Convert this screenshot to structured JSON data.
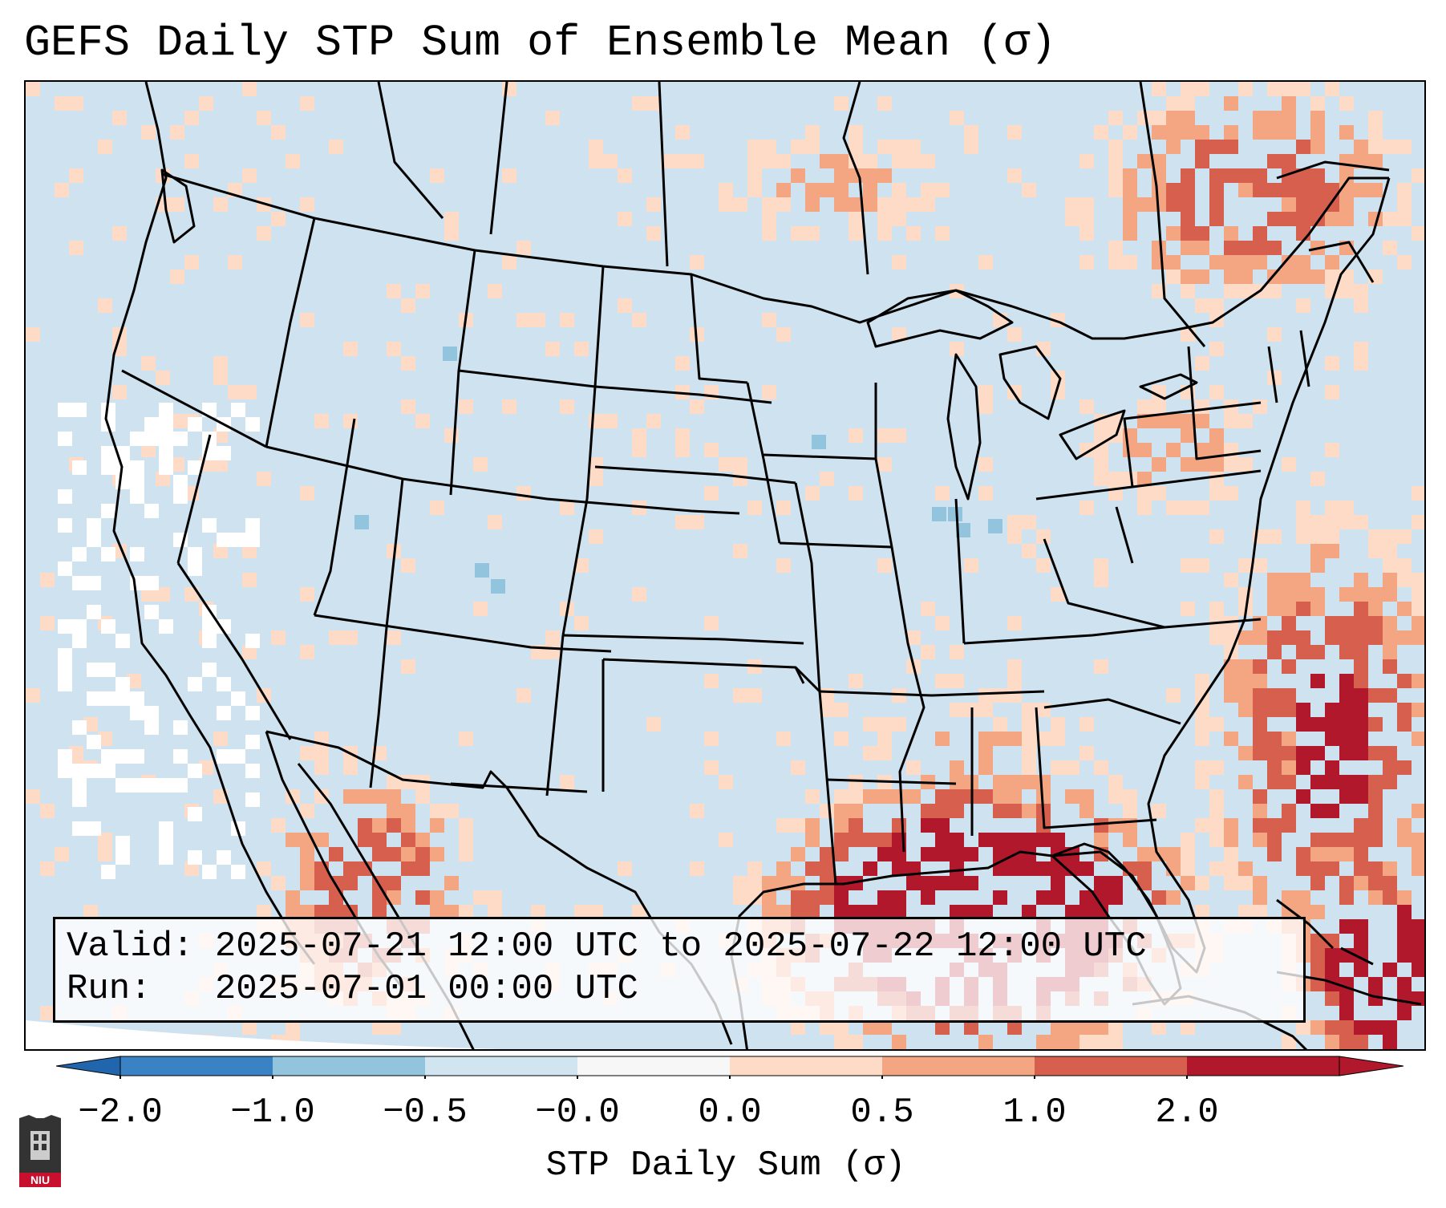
{
  "title": "GEFS Daily STP Sum of Ensemble Mean (σ)",
  "info": {
    "valid_line": "Valid: 2025-07-21 12:00 UTC to 2025-07-22 12:00 UTC",
    "run_line": "Run:   2025-07-01 00:00 UTC"
  },
  "colorbar": {
    "label": "STP Daily Sum (σ)",
    "ticks": [
      "−2.0",
      "−1.0",
      "−0.5",
      "−0.0",
      "0.0",
      "0.5",
      "1.0",
      "2.0"
    ],
    "colors": [
      "#3b82c4",
      "#92c4de",
      "#d1e5f0",
      "#f7f7f7",
      "#fddbc7",
      "#f4a582",
      "#d6604d",
      "#b2182b"
    ],
    "extend_low_color": "#2166ac",
    "extend_high_color": "#b2182b"
  },
  "map_colors": {
    "background": "#cfe2ef",
    "neutral": "#ffffff",
    "light_pos": "#fddbc7",
    "mid_pos": "#f4a582",
    "high_pos": "#d6604d",
    "very_high": "#b2182b",
    "light_neg": "#92c4de",
    "border": "#000000"
  },
  "logo": {
    "text": "NIU",
    "color": "#c8102e"
  }
}
